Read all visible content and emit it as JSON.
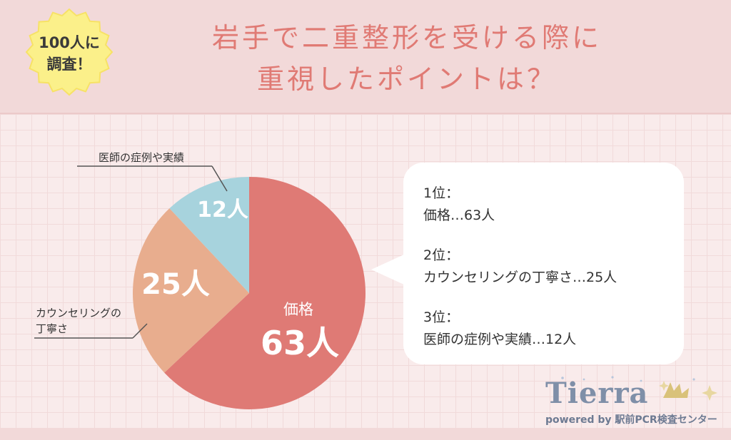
{
  "badge": {
    "line1": "100人に",
    "line2": "調査！"
  },
  "title": {
    "line1": "岩手で二重整形を受ける際に",
    "line2": "重視したポイントは？"
  },
  "chart_data": {
    "type": "pie",
    "title": "",
    "unit": "人",
    "slices": [
      {
        "label": "価格",
        "value": 63,
        "value_label": "63人",
        "color": "#df7a75"
      },
      {
        "label": "カウンセリングの丁寧さ",
        "value": 25,
        "value_label": "25人",
        "color": "#e8ad8e"
      },
      {
        "label": "医師の症例や実績",
        "value": 12,
        "value_label": "12人",
        "color": "#a7d3dd"
      }
    ],
    "outer_labels": {
      "doctor": "医師の症例や実績",
      "counsel_line1": "カウンセリングの",
      "counsel_line2": "丁寧さ"
    },
    "inner_label_price": "価格"
  },
  "ranking": {
    "r1_title": "1位：",
    "r1_text": "価格…63人",
    "r2_title": "2位：",
    "r2_text": "カウンセリングの丁寧さ…25人",
    "r3_title": "3位：",
    "r3_text": "医師の症例や実績…12人"
  },
  "logo": {
    "word": "Tierra",
    "sub": "powered by 駅前PCR検査センター"
  },
  "colors": {
    "accent": "#e07a74",
    "background": "#f9ebeb",
    "header": "#f2d9d9"
  }
}
